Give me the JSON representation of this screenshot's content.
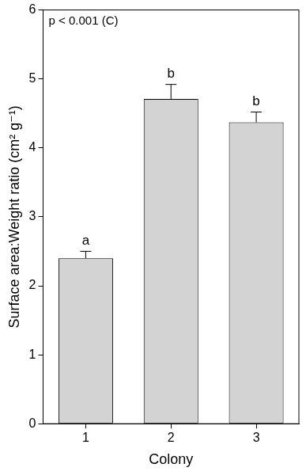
{
  "chart_data": {
    "type": "bar",
    "categories": [
      "1",
      "2",
      "3"
    ],
    "values": [
      2.4,
      4.71,
      4.37
    ],
    "error": [
      0.1,
      0.21,
      0.15
    ],
    "letters": [
      "a",
      "b",
      "b"
    ],
    "annotation": "p < 0.001 (C)",
    "x_label": "Colony",
    "y_label": "Surface area:Weight ratio (cm² g⁻¹)",
    "color": "#d3d3d3",
    "ylim": [
      0,
      6
    ],
    "yticks": [
      0,
      1,
      2,
      3,
      4,
      5,
      6
    ],
    "grid": false
  }
}
